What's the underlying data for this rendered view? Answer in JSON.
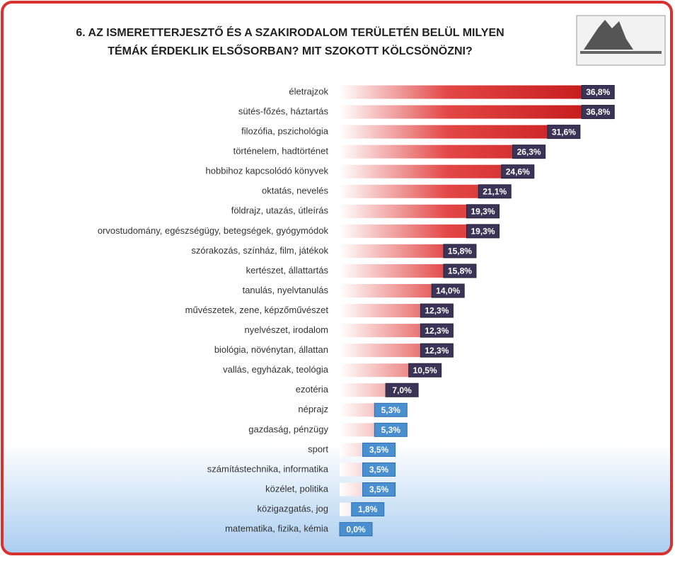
{
  "chart_data": {
    "type": "bar",
    "orientation": "horizontal",
    "title": [
      "6. AZ ISMERETTERJESZTŐ ÉS A SZAKIRODALOM TERÜLETÉN BELÜL MILYEN",
      "TÉMÁK ÉRDEKLIK ELSŐSORBAN? MIT SZOKOTT KÖLCSÖNÖZNI?"
    ],
    "color": "#d42a2a",
    "categories": [
      "életrajzok",
      "sütés-főzés, háztartás",
      "filozófia, pszichológia",
      "történelem, hadtörténet",
      "hobbihoz kapcsolódó könyvek",
      "oktatás, nevelés",
      "földrajz, utazás, útleírás",
      "orvostudomány, egészségügy, betegségek, gyógymódok",
      "szórakozás, színház, film, játékok",
      "kertészet, állattartás",
      "tanulás, nyelvtanulás",
      "művészetek, zene, képzőművészet",
      "nyelvészet, irodalom",
      "biológia, növénytan, állattan",
      "vallás, egyházak, teológia",
      "ezotéria",
      "néprajz",
      "gazdaság, pénzügy",
      "sport",
      "számítástechnika, informatika",
      "közélet, politika",
      "közigazgatás, jog",
      "matematika, fizika, kémia"
    ],
    "values": [
      36.8,
      36.8,
      31.6,
      26.3,
      24.6,
      21.1,
      19.3,
      19.3,
      15.8,
      15.8,
      14.0,
      12.3,
      12.3,
      12.3,
      10.5,
      7.0,
      5.3,
      5.3,
      3.5,
      3.5,
      3.5,
      1.8,
      0.0
    ],
    "value_labels": [
      "36,8%",
      "36,8%",
      "31,6%",
      "26,3%",
      "24,6%",
      "21,1%",
      "19,3%",
      "19,3%",
      "15,8%",
      "15,8%",
      "14,0%",
      "12,3%",
      "12,3%",
      "12,3%",
      "10,5%",
      "7,0%",
      "5,3%",
      "5,3%",
      "3,5%",
      "3,5%",
      "3,5%",
      "1,8%",
      "0,0%"
    ]
  }
}
